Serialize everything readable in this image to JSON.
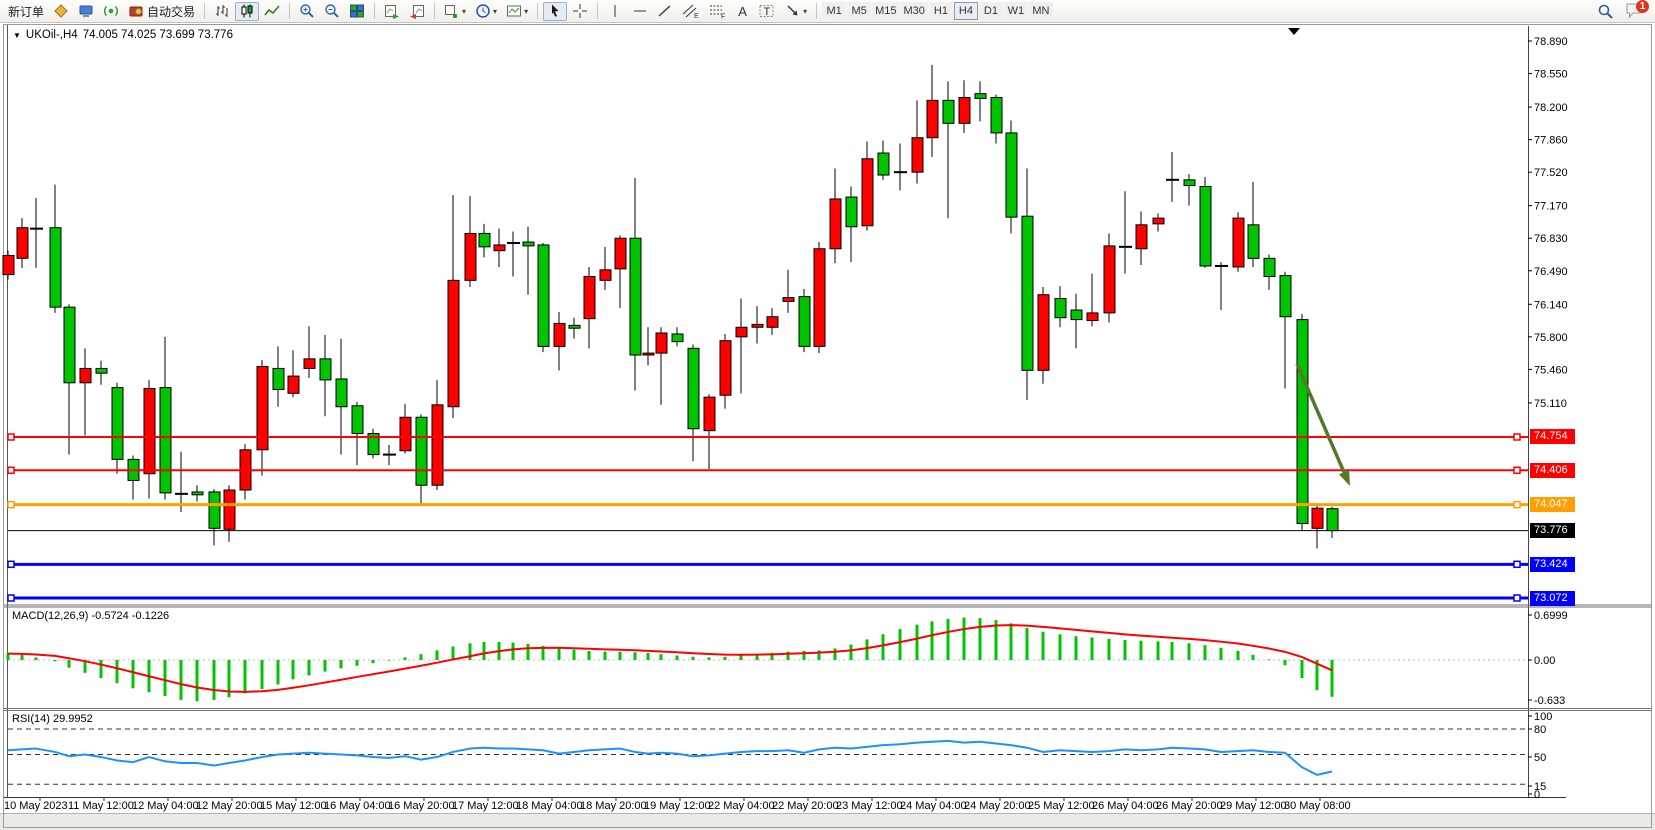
{
  "toolbar": {
    "new_order_label": "新订单",
    "auto_trading_label": "自动交易",
    "timeframes": [
      "M1",
      "M5",
      "M15",
      "M30",
      "H1",
      "H4",
      "D1",
      "W1",
      "MN"
    ],
    "active_timeframe": "H4",
    "text_tool_label": "A",
    "label_tool_label": "T",
    "notification_count": "1"
  },
  "chart": {
    "title_symbol": "UKOil-,H4",
    "title_ohlc": "74.005 74.025 73.699 73.776"
  },
  "indicators": {
    "macd_name": "MACD(12,26,9)",
    "macd_values": "-0.5724 -0.1226",
    "rsi_name": "RSI(14)",
    "rsi_value": "29.9952"
  },
  "chart_data": {
    "type": "candlestick",
    "symbol": "UKOil-",
    "timeframe": "H4",
    "title": "UKOil-,H4 74.005 74.025 73.699 73.776",
    "current_bar": {
      "open": 74.005,
      "high": 74.025,
      "low": 73.699,
      "close": 73.776
    },
    "bull_color": "#FF0000",
    "bear_color": "#00C400",
    "doji_color": "#000000",
    "price_axis_ticks": [
      "78.890",
      "78.550",
      "78.200",
      "77.860",
      "77.520",
      "77.170",
      "76.830",
      "76.490",
      "76.140",
      "75.800",
      "75.460",
      "75.110"
    ],
    "x_ticks": [
      "10 May 2023",
      "11 May 12:00",
      "12 May 04:00",
      "12 May 20:00",
      "15 May 12:00",
      "16 May 04:00",
      "16 May 20:00",
      "17 May 12:00",
      "18 May 04:00",
      "18 May 20:00",
      "19 May 12:00",
      "22 May 04:00",
      "22 May 20:00",
      "23 May 12:00",
      "24 May 04:00",
      "24 May 20:00",
      "25 May 12:00",
      "26 May 04:00",
      "26 May 20:00",
      "29 May 12:00",
      "30 May 08:00"
    ],
    "candles": [
      [
        8,
        76.45,
        76.7,
        76.4,
        76.65
      ],
      [
        22,
        76.62,
        77.04,
        76.52,
        76.94
      ],
      [
        36,
        76.93,
        77.25,
        76.52,
        76.93
      ],
      [
        55,
        76.94,
        77.39,
        76.05,
        76.11
      ],
      [
        69,
        76.11,
        76.14,
        74.57,
        75.32
      ],
      [
        85,
        75.32,
        75.68,
        74.77,
        75.47
      ],
      [
        101,
        75.47,
        75.55,
        75.3,
        75.42
      ],
      [
        117,
        75.27,
        75.32,
        74.37,
        74.52
      ],
      [
        133,
        74.52,
        74.56,
        74.1,
        74.3
      ],
      [
        149,
        74.37,
        75.35,
        74.11,
        75.26
      ],
      [
        165,
        75.27,
        75.8,
        74.1,
        74.17
      ],
      [
        181,
        74.16,
        74.6,
        73.97,
        74.16
      ],
      [
        197,
        74.18,
        74.25,
        74.08,
        74.15
      ],
      [
        214,
        74.18,
        74.21,
        73.62,
        73.8
      ],
      [
        229,
        73.79,
        74.25,
        73.66,
        74.2
      ],
      [
        245,
        74.2,
        74.68,
        74.1,
        74.62
      ],
      [
        262,
        74.62,
        75.56,
        74.35,
        75.49
      ],
      [
        278,
        75.47,
        75.7,
        75.07,
        75.25
      ],
      [
        293,
        75.21,
        75.66,
        75.17,
        75.39
      ],
      [
        309,
        75.47,
        75.91,
        75.37,
        75.57
      ],
      [
        325,
        75.57,
        75.82,
        74.97,
        75.35
      ],
      [
        341,
        75.36,
        75.78,
        74.57,
        75.07
      ],
      [
        357,
        75.08,
        75.12,
        74.46,
        74.79
      ],
      [
        373,
        74.79,
        74.84,
        74.53,
        74.57
      ],
      [
        389,
        74.57,
        74.67,
        74.46,
        74.57
      ],
      [
        405,
        74.61,
        75.1,
        74.58,
        74.96
      ],
      [
        421,
        74.96,
        74.99,
        74.06,
        74.25
      ],
      [
        437,
        74.25,
        75.35,
        74.2,
        75.09
      ],
      [
        453,
        75.07,
        77.28,
        74.95,
        76.39
      ],
      [
        470,
        76.39,
        77.27,
        76.32,
        76.88
      ],
      [
        484,
        76.88,
        76.98,
        76.63,
        76.74
      ],
      [
        499,
        76.7,
        76.93,
        76.53,
        76.76
      ],
      [
        513,
        76.78,
        76.9,
        76.43,
        76.78
      ],
      [
        528,
        76.79,
        76.95,
        76.24,
        76.75
      ],
      [
        543,
        76.76,
        76.78,
        75.64,
        75.7
      ],
      [
        559,
        75.7,
        76.06,
        75.45,
        75.94
      ],
      [
        574,
        75.92,
        76.0,
        75.78,
        75.89
      ],
      [
        589,
        75.99,
        76.53,
        75.68,
        76.43
      ],
      [
        605,
        76.39,
        76.74,
        76.29,
        76.5
      ],
      [
        620,
        76.51,
        76.86,
        76.1,
        76.83
      ],
      [
        635,
        76.83,
        77.46,
        75.24,
        75.61
      ],
      [
        648,
        75.61,
        75.9,
        75.5,
        75.63
      ],
      [
        661,
        75.63,
        75.9,
        75.09,
        75.84
      ],
      [
        677,
        75.83,
        75.9,
        75.7,
        75.75
      ],
      [
        693,
        75.68,
        75.72,
        74.5,
        74.84
      ],
      [
        709,
        74.82,
        75.2,
        74.42,
        75.17
      ],
      [
        725,
        75.19,
        75.83,
        75.05,
        75.76
      ],
      [
        741,
        75.8,
        76.2,
        75.21,
        75.9
      ],
      [
        757,
        75.9,
        76.12,
        75.73,
        75.93
      ],
      [
        772,
        75.9,
        76.1,
        75.82,
        76.01
      ],
      [
        788,
        76.17,
        76.5,
        76.05,
        76.21
      ],
      [
        804,
        76.22,
        76.3,
        75.64,
        75.7
      ],
      [
        819,
        75.7,
        76.79,
        75.63,
        76.72
      ],
      [
        835,
        76.72,
        77.56,
        76.57,
        77.24
      ],
      [
        851,
        77.26,
        77.37,
        76.58,
        76.95
      ],
      [
        867,
        76.96,
        77.84,
        76.91,
        77.66
      ],
      [
        883,
        77.72,
        77.85,
        77.44,
        77.49
      ],
      [
        900,
        77.52,
        77.82,
        77.33,
        77.52
      ],
      [
        917,
        77.52,
        78.27,
        77.4,
        77.88
      ],
      [
        932,
        77.88,
        78.64,
        77.68,
        78.27
      ],
      [
        948,
        78.27,
        78.47,
        77.04,
        78.03
      ],
      [
        964,
        78.03,
        78.48,
        77.93,
        78.3
      ],
      [
        980,
        78.34,
        78.47,
        78.05,
        78.29
      ],
      [
        996,
        78.3,
        78.33,
        77.82,
        77.93
      ],
      [
        1011,
        77.93,
        78.06,
        76.88,
        77.05
      ],
      [
        1027,
        77.06,
        77.56,
        75.14,
        75.45
      ],
      [
        1043,
        75.45,
        76.32,
        75.31,
        76.24
      ],
      [
        1060,
        76.2,
        76.33,
        75.9,
        76.0
      ],
      [
        1076,
        76.08,
        76.25,
        75.68,
        75.98
      ],
      [
        1092,
        75.97,
        76.46,
        75.91,
        76.05
      ],
      [
        1109,
        76.05,
        76.88,
        75.95,
        76.75
      ],
      [
        1125,
        76.74,
        77.32,
        76.46,
        76.74
      ],
      [
        1141,
        76.72,
        77.11,
        76.55,
        76.97
      ],
      [
        1158,
        76.98,
        77.09,
        76.9,
        77.04
      ],
      [
        1172,
        77.44,
        77.73,
        77.21,
        77.44
      ],
      [
        1189,
        77.44,
        77.5,
        77.17,
        77.38
      ],
      [
        1205,
        77.37,
        77.47,
        76.52,
        76.54
      ],
      [
        1221,
        76.54,
        76.58,
        76.08,
        76.54
      ],
      [
        1238,
        76.53,
        77.1,
        76.48,
        77.04
      ],
      [
        1253,
        76.97,
        77.42,
        76.53,
        76.62
      ],
      [
        1269,
        76.62,
        76.66,
        76.29,
        76.43
      ],
      [
        1285,
        76.44,
        76.48,
        75.26,
        76.01
      ],
      [
        1302,
        75.98,
        76.04,
        73.78,
        73.85
      ],
      [
        1317,
        73.8,
        74.06,
        73.59,
        74.01
      ],
      [
        1332,
        74.005,
        74.025,
        73.699,
        73.776
      ]
    ],
    "hlines": [
      {
        "price": 74.754,
        "label": "74.754",
        "color": "#FF0000",
        "width": 2,
        "handles": true
      },
      {
        "price": 74.406,
        "label": "74.406",
        "color": "#FF0000",
        "width": 2,
        "handles": true
      },
      {
        "price": 74.047,
        "label": "74.047",
        "color": "#FFA000",
        "width": 3,
        "handles": true
      },
      {
        "price": 73.776,
        "label": "73.776",
        "color": "#000000",
        "width": 1,
        "handles": false
      },
      {
        "price": 73.424,
        "label": "73.424",
        "color": "#0000FF",
        "width": 3,
        "handles": true
      },
      {
        "price": 73.072,
        "label": "73.072",
        "color": "#0000FF",
        "width": 3,
        "handles": true
      }
    ],
    "macd": {
      "params": "12,26,9",
      "value": -0.5724,
      "signal": -0.1226,
      "axis_ticks": [
        "0.6999",
        "0.00",
        "-0.633"
      ],
      "hist": [
        0.1,
        0.08,
        0.04,
        -0.02,
        -0.12,
        -0.2,
        -0.28,
        -0.36,
        -0.44,
        -0.5,
        -0.56,
        -0.62,
        -0.64,
        -0.62,
        -0.58,
        -0.52,
        -0.45,
        -0.38,
        -0.3,
        -0.24,
        -0.18,
        -0.13,
        -0.09,
        -0.05,
        -0.01,
        0.04,
        0.09,
        0.15,
        0.21,
        0.26,
        0.28,
        0.28,
        0.27,
        0.25,
        0.22,
        0.19,
        0.16,
        0.14,
        0.13,
        0.13,
        0.12,
        0.11,
        0.09,
        0.07,
        0.05,
        0.04,
        0.05,
        0.07,
        0.09,
        0.11,
        0.13,
        0.14,
        0.15,
        0.18,
        0.24,
        0.32,
        0.4,
        0.48,
        0.55,
        0.6,
        0.64,
        0.66,
        0.65,
        0.62,
        0.57,
        0.5,
        0.44,
        0.4,
        0.37,
        0.35,
        0.33,
        0.31,
        0.3,
        0.29,
        0.28,
        0.26,
        0.23,
        0.19,
        0.14,
        0.08,
        0.01,
        -0.08,
        -0.28,
        -0.47,
        -0.5724
      ]
    },
    "rsi": {
      "period": 14,
      "value": 29.9952,
      "levels": [
        80,
        50,
        15
      ],
      "axis_ticks": [
        "100",
        "80",
        "50",
        "15",
        "0"
      ],
      "values": [
        55,
        56,
        57,
        53,
        48,
        50,
        47,
        43,
        41,
        47,
        42,
        40,
        40,
        37,
        40,
        43,
        47,
        50,
        51,
        52,
        51,
        50,
        49,
        47,
        46,
        48,
        44,
        47,
        53,
        57,
        58,
        57,
        57,
        56,
        55,
        51,
        53,
        55,
        56,
        57,
        53,
        51,
        52,
        51,
        48,
        49,
        51,
        53,
        54,
        54,
        55,
        52,
        56,
        58,
        57,
        59,
        61,
        62,
        64,
        65,
        66,
        64,
        65,
        63,
        61,
        58,
        53,
        55,
        54,
        53,
        54,
        56,
        55,
        56,
        58,
        57,
        56,
        53,
        54,
        55,
        53,
        52,
        35,
        26,
        30
      ]
    },
    "trend_arrow": {
      "from": [
        1297,
        364
      ],
      "to": [
        1350,
        486
      ],
      "color": "#55792B"
    }
  }
}
